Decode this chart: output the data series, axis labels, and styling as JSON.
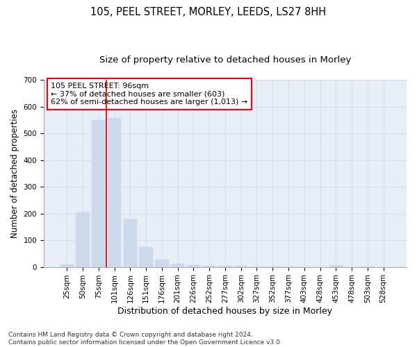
{
  "title_line1": "105, PEEL STREET, MORLEY, LEEDS, LS27 8HH",
  "title_line2": "Size of property relative to detached houses in Morley",
  "xlabel": "Distribution of detached houses by size in Morley",
  "ylabel": "Number of detached properties",
  "categories": [
    "25sqm",
    "50sqm",
    "75sqm",
    "101sqm",
    "126sqm",
    "151sqm",
    "176sqm",
    "201sqm",
    "226sqm",
    "252sqm",
    "277sqm",
    "302sqm",
    "327sqm",
    "352sqm",
    "377sqm",
    "403sqm",
    "428sqm",
    "453sqm",
    "478sqm",
    "503sqm",
    "528sqm"
  ],
  "values": [
    10,
    203,
    550,
    558,
    178,
    75,
    28,
    11,
    7,
    5,
    5,
    3,
    2,
    2,
    1,
    0,
    0,
    8,
    0,
    1,
    0
  ],
  "bar_color": "#ccd9ea",
  "bar_edge_color": "#ccd9ea",
  "annotation_text": "105 PEEL STREET: 96sqm\n← 37% of detached houses are smaller (603)\n62% of semi-detached houses are larger (1,013) →",
  "vline_color": "#cc0000",
  "vline_pos": 2.5,
  "ylim": [
    0,
    700
  ],
  "yticks": [
    0,
    100,
    200,
    300,
    400,
    500,
    600,
    700
  ],
  "grid_color": "#d4dded",
  "bg_color": "#e8eef8",
  "footnote": "Contains HM Land Registry data © Crown copyright and database right 2024.\nContains public sector information licensed under the Open Government Licence v3.0.",
  "title_fontsize": 10.5,
  "subtitle_fontsize": 9.5,
  "xlabel_fontsize": 9,
  "ylabel_fontsize": 8.5,
  "tick_fontsize": 7.5,
  "annot_fontsize": 8,
  "footnote_fontsize": 6.5
}
